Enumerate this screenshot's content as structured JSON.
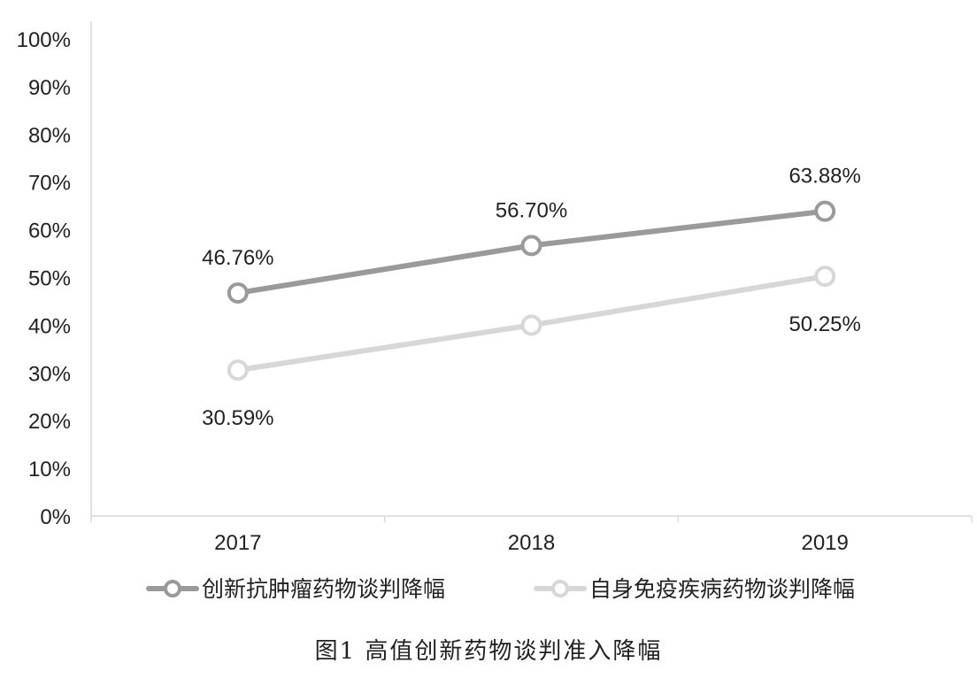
{
  "caption": "图1  高值创新药物谈判准入降幅",
  "chart_data": {
    "type": "line",
    "categories": [
      "2017",
      "2018",
      "2019"
    ],
    "ylim": [
      0,
      100
    ],
    "yticks": [
      "0%",
      "10%",
      "20%",
      "30%",
      "40%",
      "50%",
      "60%",
      "70%",
      "80%",
      "90%",
      "100%"
    ],
    "series": [
      {
        "name": "创新抗肿瘤药物谈判降幅",
        "values": [
          46.76,
          56.7,
          63.88
        ],
        "labels": [
          "46.76%",
          "56.70%",
          "63.88%"
        ],
        "label_position": "above",
        "color": "#9a9a9c"
      },
      {
        "name": "自身免疫疾病药物谈判降幅",
        "values": [
          30.59,
          40.0,
          50.25
        ],
        "labels": [
          "30.59%",
          "",
          "50.25%"
        ],
        "label_position": "below",
        "color": "#d7d7d7"
      }
    ],
    "grid": false,
    "legend": "bottom",
    "markers": "hollow-circle"
  }
}
